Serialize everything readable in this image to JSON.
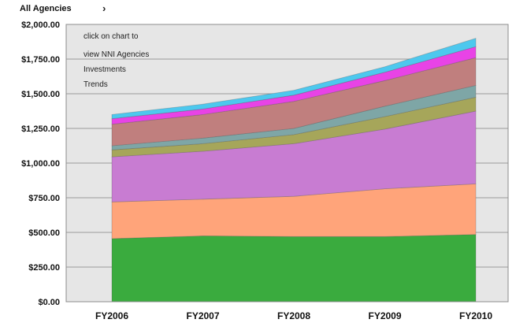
{
  "header": {
    "scope_label": "All Agencies",
    "arrow": "›"
  },
  "note": {
    "lines": [
      "click on chart to",
      "view NNI Agencies",
      "Investments",
      "Trends"
    ]
  },
  "colors": {
    "plot_bg": "#e6e6e6",
    "frame": "#8c8c8c",
    "grid": "#9a9a9a"
  },
  "chart_data": {
    "type": "area",
    "stacked": true,
    "categories": [
      "FY2006",
      "FY2007",
      "FY2008",
      "FY2009",
      "FY2010"
    ],
    "ylim": [
      0,
      2000
    ],
    "yticks": [
      "$0.00",
      "$250.00",
      "$500.00",
      "$750.00",
      "$1,000.00",
      "$1,250.00",
      "$1,500.00",
      "$1,750.00",
      "$2,000.00"
    ],
    "grid": true,
    "legend": "none",
    "series": [
      {
        "values": [
          455,
          475,
          470,
          470,
          485
        ],
        "color": "#3aab3e"
      },
      {
        "values": [
          265,
          265,
          290,
          345,
          365
        ],
        "color": "#ffa47a"
      },
      {
        "values": [
          325,
          345,
          380,
          430,
          525
        ],
        "color": "#c87cd2"
      },
      {
        "values": [
          50,
          55,
          65,
          90,
          100
        ],
        "color": "#a6a65a"
      },
      {
        "values": [
          30,
          40,
          45,
          75,
          85
        ],
        "color": "#7ea6a6"
      },
      {
        "values": [
          155,
          170,
          195,
          185,
          200
        ],
        "color": "#c07f7e"
      },
      {
        "values": [
          40,
          40,
          45,
          60,
          80
        ],
        "color": "#e843e6"
      },
      {
        "values": [
          30,
          35,
          35,
          40,
          60
        ],
        "color": "#4dc8ee"
      }
    ]
  }
}
